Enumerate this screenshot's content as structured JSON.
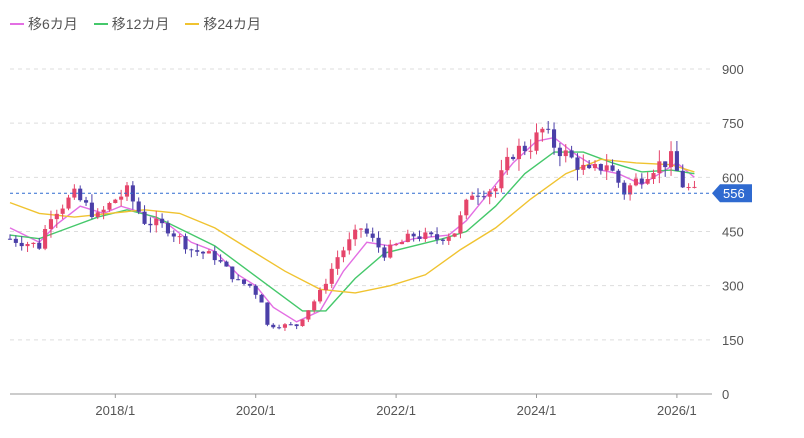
{
  "legend": [
    {
      "label": "移6カ月",
      "color": "#e36fe3"
    },
    {
      "label": "移12カ月",
      "color": "#45c86b"
    },
    {
      "label": "移24カ月",
      "color": "#f0c330"
    }
  ],
  "current_price": {
    "value": 556,
    "label": "556",
    "color": "#2f6ad0"
  },
  "colors": {
    "up": "#e5456b",
    "down": "#4b3fa8",
    "grid": "#dddddd",
    "axis": "#9a9a9a"
  },
  "chart_data": {
    "type": "candlestick",
    "title": "",
    "xlabel": "",
    "ylabel": "",
    "ylim": [
      0,
      900
    ],
    "y_ticks": [
      0,
      150,
      300,
      450,
      600,
      750,
      900
    ],
    "y_tick_labels": [
      "0",
      "150",
      "300",
      "450",
      "600",
      "750",
      "900"
    ],
    "x_start": "2016-07",
    "x_end": "2026-07",
    "x_ticks": [
      {
        "date": "2018-01",
        "label": "2018/1"
      },
      {
        "date": "2020-01",
        "label": "2020/1"
      },
      {
        "date": "2022-01",
        "label": "2022/1"
      },
      {
        "date": "2024-01",
        "label": "2024/1"
      },
      {
        "date": "2026-01",
        "label": "2026/1"
      }
    ],
    "grid": true,
    "legend_position": "top-left",
    "reference_line": 556,
    "candle_key_points": [
      {
        "date": "2016-07",
        "close": 430
      },
      {
        "date": "2016-12",
        "close": 410
      },
      {
        "date": "2017-02",
        "close": 500
      },
      {
        "date": "2017-06",
        "close": 550
      },
      {
        "date": "2017-10",
        "close": 490
      },
      {
        "date": "2018-01",
        "close": 540
      },
      {
        "date": "2018-03",
        "close": 560
      },
      {
        "date": "2018-06",
        "close": 480
      },
      {
        "date": "2018-10",
        "close": 460
      },
      {
        "date": "2019-02",
        "close": 400
      },
      {
        "date": "2019-06",
        "close": 380
      },
      {
        "date": "2019-10",
        "close": 310
      },
      {
        "date": "2019-12",
        "close": 300
      },
      {
        "date": "2020-02",
        "close": 260
      },
      {
        "date": "2020-03",
        "close": 190
      },
      {
        "date": "2020-08",
        "close": 190
      },
      {
        "date": "2020-12",
        "close": 280
      },
      {
        "date": "2021-03",
        "close": 380
      },
      {
        "date": "2021-07",
        "close": 460
      },
      {
        "date": "2021-11",
        "close": 390
      },
      {
        "date": "2022-04",
        "close": 440
      },
      {
        "date": "2022-08",
        "close": 430
      },
      {
        "date": "2022-11",
        "close": 450
      },
      {
        "date": "2023-02",
        "close": 560
      },
      {
        "date": "2023-06",
        "close": 570
      },
      {
        "date": "2023-09",
        "close": 670
      },
      {
        "date": "2023-12",
        "close": 690
      },
      {
        "date": "2024-02",
        "close": 730
      },
      {
        "date": "2024-04",
        "close": 690
      },
      {
        "date": "2024-07",
        "close": 650
      },
      {
        "date": "2024-10",
        "close": 610
      },
      {
        "date": "2025-01",
        "close": 640
      },
      {
        "date": "2025-04",
        "close": 560
      },
      {
        "date": "2025-06",
        "close": 590
      },
      {
        "date": "2025-09",
        "close": 630
      },
      {
        "date": "2025-12",
        "close": 650
      },
      {
        "date": "2026-02",
        "close": 580
      },
      {
        "date": "2026-04",
        "close": 556
      }
    ],
    "series": [
      {
        "name": "移6カ月",
        "color": "#e36fe3",
        "points": [
          {
            "date": "2016-07",
            "y": 460
          },
          {
            "date": "2016-12",
            "y": 420
          },
          {
            "date": "2017-03",
            "y": 470
          },
          {
            "date": "2017-07",
            "y": 520
          },
          {
            "date": "2017-11",
            "y": 500
          },
          {
            "date": "2018-02",
            "y": 520
          },
          {
            "date": "2018-06",
            "y": 500
          },
          {
            "date": "2018-10",
            "y": 470
          },
          {
            "date": "2019-02",
            "y": 420
          },
          {
            "date": "2019-06",
            "y": 395
          },
          {
            "date": "2019-10",
            "y": 330
          },
          {
            "date": "2020-01",
            "y": 300
          },
          {
            "date": "2020-04",
            "y": 240
          },
          {
            "date": "2020-08",
            "y": 200
          },
          {
            "date": "2020-12",
            "y": 230
          },
          {
            "date": "2021-04",
            "y": 340
          },
          {
            "date": "2021-08",
            "y": 420
          },
          {
            "date": "2021-12",
            "y": 410
          },
          {
            "date": "2022-04",
            "y": 430
          },
          {
            "date": "2022-10",
            "y": 440
          },
          {
            "date": "2023-01",
            "y": 480
          },
          {
            "date": "2023-05",
            "y": 560
          },
          {
            "date": "2023-09",
            "y": 640
          },
          {
            "date": "2024-01",
            "y": 700
          },
          {
            "date": "2024-04",
            "y": 710
          },
          {
            "date": "2024-08",
            "y": 660
          },
          {
            "date": "2024-12",
            "y": 620
          },
          {
            "date": "2025-03",
            "y": 610
          },
          {
            "date": "2025-07",
            "y": 580
          },
          {
            "date": "2025-10",
            "y": 610
          },
          {
            "date": "2026-01",
            "y": 640
          },
          {
            "date": "2026-04",
            "y": 600
          }
        ]
      },
      {
        "name": "移12カ月",
        "color": "#45c86b",
        "points": [
          {
            "date": "2016-07",
            "y": 440
          },
          {
            "date": "2016-12",
            "y": 430
          },
          {
            "date": "2017-05",
            "y": 460
          },
          {
            "date": "2017-10",
            "y": 490
          },
          {
            "date": "2018-03",
            "y": 510
          },
          {
            "date": "2018-08",
            "y": 490
          },
          {
            "date": "2019-01",
            "y": 450
          },
          {
            "date": "2019-06",
            "y": 410
          },
          {
            "date": "2019-11",
            "y": 350
          },
          {
            "date": "2020-04",
            "y": 290
          },
          {
            "date": "2020-09",
            "y": 230
          },
          {
            "date": "2021-01",
            "y": 230
          },
          {
            "date": "2021-06",
            "y": 320
          },
          {
            "date": "2021-11",
            "y": 390
          },
          {
            "date": "2022-04",
            "y": 410
          },
          {
            "date": "2022-09",
            "y": 430
          },
          {
            "date": "2023-01",
            "y": 450
          },
          {
            "date": "2023-06",
            "y": 520
          },
          {
            "date": "2023-11",
            "y": 610
          },
          {
            "date": "2024-04",
            "y": 670
          },
          {
            "date": "2024-09",
            "y": 670
          },
          {
            "date": "2025-02",
            "y": 640
          },
          {
            "date": "2025-07",
            "y": 615
          },
          {
            "date": "2025-12",
            "y": 620
          },
          {
            "date": "2026-04",
            "y": 610
          }
        ]
      },
      {
        "name": "移24カ月",
        "color": "#f0c330",
        "points": [
          {
            "date": "2016-07",
            "y": 530
          },
          {
            "date": "2016-12",
            "y": 500
          },
          {
            "date": "2017-06",
            "y": 490
          },
          {
            "date": "2017-12",
            "y": 500
          },
          {
            "date": "2018-06",
            "y": 510
          },
          {
            "date": "2018-12",
            "y": 500
          },
          {
            "date": "2019-06",
            "y": 460
          },
          {
            "date": "2019-12",
            "y": 400
          },
          {
            "date": "2020-06",
            "y": 340
          },
          {
            "date": "2020-12",
            "y": 290
          },
          {
            "date": "2021-06",
            "y": 280
          },
          {
            "date": "2021-12",
            "y": 300
          },
          {
            "date": "2022-06",
            "y": 330
          },
          {
            "date": "2022-12",
            "y": 400
          },
          {
            "date": "2023-06",
            "y": 460
          },
          {
            "date": "2023-12",
            "y": 540
          },
          {
            "date": "2024-06",
            "y": 610
          },
          {
            "date": "2024-12",
            "y": 650
          },
          {
            "date": "2025-06",
            "y": 640
          },
          {
            "date": "2025-12",
            "y": 635
          },
          {
            "date": "2026-04",
            "y": 615
          }
        ]
      }
    ]
  }
}
